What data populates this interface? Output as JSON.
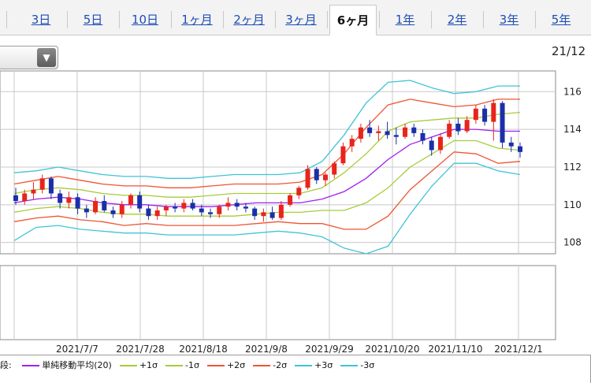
{
  "tabs": [
    {
      "label": "3日",
      "active": false
    },
    {
      "label": "5日",
      "active": false
    },
    {
      "label": "10日",
      "active": false
    },
    {
      "label": "1ヶ月",
      "active": false
    },
    {
      "label": "2ヶ月",
      "active": false
    },
    {
      "label": "3ヶ月",
      "active": false
    },
    {
      "label": "6ヶ月",
      "active": true
    },
    {
      "label": "1年",
      "active": false
    },
    {
      "label": "2年",
      "active": false
    },
    {
      "label": "3年",
      "active": false
    },
    {
      "label": "5年",
      "active": false
    }
  ],
  "header": {
    "date": "21/12"
  },
  "dropdown": {
    "arrow": "▼"
  },
  "legend": {
    "prefix": "段:",
    "items": [
      {
        "label": "単純移動平均(20)",
        "color": "#a020f0"
      },
      {
        "label": "+1σ",
        "color": "#a8cc3a"
      },
      {
        "label": "-1σ",
        "color": "#a8cc3a"
      },
      {
        "label": "+2σ",
        "color": "#ee5533"
      },
      {
        "label": "-2σ",
        "color": "#ee5533"
      },
      {
        "label": "+3σ",
        "color": "#40c4d8"
      },
      {
        "label": "-3σ",
        "color": "#40c4d8"
      }
    ]
  },
  "colors": {
    "up": "#e8241b",
    "down": "#1a2fa8",
    "grid": "#c8c8c8",
    "frame": "#888888"
  },
  "chart_data": {
    "type": "line",
    "title": "",
    "x_tick_labels": [
      "2021/7/7",
      "2021/7/28",
      "2021/8/18",
      "2021/9/8",
      "2021/9/29",
      "2021/10/20",
      "2021/11/10",
      "2021/12/1"
    ],
    "y_tick_labels": [
      "108",
      "110",
      "112",
      "114",
      "116"
    ],
    "ylim": [
      107.4,
      117.1
    ],
    "grid": true,
    "legend_position": "bottom",
    "series": [
      {
        "name": "単純移動平均(20)",
        "values": [
          110.1,
          110.3,
          110.4,
          110.3,
          110.1,
          110.0,
          110.0,
          109.9,
          109.9,
          109.9,
          110.0,
          110.1,
          110.1,
          110.1,
          110.3,
          110.7,
          111.4,
          112.4,
          113.2,
          113.6,
          114.0,
          114.0,
          113.9,
          113.9
        ]
      },
      {
        "name": "+1σ",
        "values": [
          110.6,
          110.8,
          110.9,
          110.8,
          110.6,
          110.5,
          110.5,
          110.4,
          110.4,
          110.5,
          110.6,
          110.6,
          110.6,
          110.6,
          110.9,
          111.7,
          112.7,
          113.9,
          114.4,
          114.5,
          114.6,
          114.6,
          114.8,
          114.9
        ]
      },
      {
        "name": "-1σ",
        "values": [
          109.6,
          109.8,
          109.9,
          109.8,
          109.6,
          109.5,
          109.5,
          109.4,
          109.4,
          109.4,
          109.4,
          109.5,
          109.6,
          109.6,
          109.7,
          109.7,
          110.1,
          110.9,
          112.0,
          112.7,
          113.4,
          113.4,
          113.0,
          112.9
        ]
      },
      {
        "name": "+2σ",
        "values": [
          111.1,
          111.3,
          111.5,
          111.3,
          111.1,
          111.0,
          111.0,
          110.9,
          110.9,
          111.0,
          111.1,
          111.1,
          111.1,
          111.2,
          111.6,
          112.7,
          114.1,
          115.3,
          115.6,
          115.4,
          115.2,
          115.3,
          115.6,
          115.6
        ]
      },
      {
        "name": "-2σ",
        "values": [
          109.1,
          109.3,
          109.4,
          109.2,
          109.1,
          108.9,
          109.0,
          108.9,
          108.9,
          108.9,
          108.9,
          109.0,
          109.1,
          109.0,
          109.0,
          108.7,
          108.7,
          109.4,
          110.8,
          111.8,
          112.8,
          112.7,
          112.2,
          112.3
        ]
      },
      {
        "name": "+3σ",
        "values": [
          111.7,
          111.8,
          112.0,
          111.8,
          111.6,
          111.5,
          111.5,
          111.4,
          111.4,
          111.5,
          111.6,
          111.6,
          111.6,
          111.7,
          112.3,
          113.7,
          115.4,
          116.5,
          116.6,
          116.2,
          115.9,
          116.0,
          116.3,
          116.3
        ]
      },
      {
        "name": "-3σ",
        "values": [
          108.1,
          108.8,
          108.9,
          108.7,
          108.6,
          108.5,
          108.5,
          108.4,
          108.4,
          108.4,
          108.4,
          108.5,
          108.6,
          108.5,
          108.3,
          107.7,
          107.4,
          107.8,
          109.5,
          111.0,
          112.2,
          112.2,
          111.8,
          111.6
        ]
      }
    ],
    "candles_ohlc": [
      [
        110.5,
        110.9,
        110.0,
        110.2
      ],
      [
        110.2,
        110.8,
        110.0,
        110.6
      ],
      [
        110.6,
        111.2,
        110.3,
        110.8
      ],
      [
        110.8,
        111.6,
        110.6,
        111.4
      ],
      [
        111.4,
        111.5,
        110.3,
        110.6
      ],
      [
        110.6,
        110.8,
        109.8,
        110.1
      ],
      [
        110.1,
        110.7,
        109.8,
        110.4
      ],
      [
        110.4,
        110.6,
        109.5,
        109.8
      ],
      [
        109.8,
        110.0,
        109.3,
        109.6
      ],
      [
        109.6,
        110.4,
        109.5,
        110.2
      ],
      [
        110.2,
        110.5,
        109.6,
        109.7
      ],
      [
        109.7,
        109.9,
        109.3,
        109.5
      ],
      [
        109.5,
        110.2,
        109.3,
        110.0
      ],
      [
        110.0,
        110.6,
        109.8,
        110.5
      ],
      [
        110.5,
        110.7,
        109.6,
        109.8
      ],
      [
        109.8,
        110.0,
        109.2,
        109.4
      ],
      [
        109.4,
        109.9,
        109.2,
        109.7
      ],
      [
        109.7,
        110.0,
        109.4,
        109.9
      ],
      [
        109.9,
        110.1,
        109.6,
        109.8
      ],
      [
        109.8,
        110.3,
        109.6,
        110.1
      ],
      [
        110.1,
        110.3,
        109.7,
        109.8
      ],
      [
        109.8,
        110.0,
        109.4,
        109.6
      ],
      [
        109.6,
        109.8,
        109.3,
        109.5
      ],
      [
        109.5,
        110.0,
        109.3,
        109.9
      ],
      [
        109.9,
        110.4,
        109.7,
        110.1
      ],
      [
        110.1,
        110.3,
        109.7,
        109.9
      ],
      [
        109.9,
        110.1,
        109.6,
        109.8
      ],
      [
        109.8,
        109.9,
        109.2,
        109.4
      ],
      [
        109.4,
        109.8,
        109.1,
        109.6
      ],
      [
        109.6,
        109.9,
        109.2,
        109.3
      ],
      [
        109.3,
        110.2,
        109.2,
        110.0
      ],
      [
        110.0,
        110.6,
        109.9,
        110.5
      ],
      [
        110.5,
        111.0,
        110.3,
        110.9
      ],
      [
        110.9,
        112.1,
        110.8,
        111.9
      ],
      [
        111.9,
        112.0,
        111.1,
        111.3
      ],
      [
        111.3,
        111.7,
        111.0,
        111.6
      ],
      [
        111.6,
        112.3,
        111.4,
        112.2
      ],
      [
        112.2,
        113.3,
        112.1,
        113.1
      ],
      [
        113.1,
        113.7,
        112.8,
        113.5
      ],
      [
        113.5,
        114.3,
        113.3,
        114.1
      ],
      [
        114.1,
        114.5,
        113.6,
        113.8
      ],
      [
        113.8,
        114.2,
        113.4,
        113.9
      ],
      [
        113.9,
        114.4,
        113.5,
        113.7
      ],
      [
        113.7,
        114.1,
        113.2,
        113.6
      ],
      [
        113.6,
        114.3,
        113.5,
        114.1
      ],
      [
        114.1,
        114.3,
        113.6,
        113.8
      ],
      [
        113.8,
        114.0,
        113.2,
        113.4
      ],
      [
        113.4,
        113.6,
        112.6,
        112.9
      ],
      [
        112.9,
        113.8,
        112.7,
        113.6
      ],
      [
        113.6,
        114.5,
        113.5,
        114.3
      ],
      [
        114.3,
        114.6,
        113.7,
        113.9
      ],
      [
        113.9,
        114.7,
        113.8,
        114.5
      ],
      [
        114.5,
        115.3,
        114.3,
        115.1
      ],
      [
        115.1,
        115.3,
        114.2,
        114.4
      ],
      [
        114.4,
        115.6,
        113.4,
        115.4
      ],
      [
        115.4,
        115.5,
        113.0,
        113.3
      ],
      [
        113.3,
        113.6,
        112.8,
        113.1
      ],
      [
        113.1,
        113.3,
        112.5,
        112.8
      ]
    ]
  }
}
